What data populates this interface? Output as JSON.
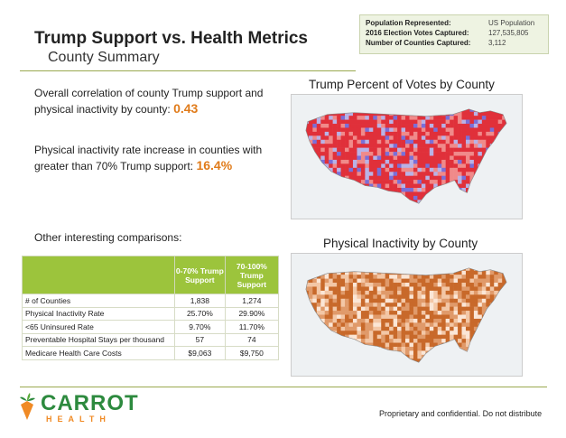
{
  "header": {
    "title": "Trump Support vs. Health Metrics",
    "subtitle": "County Summary"
  },
  "info": {
    "rows": [
      {
        "key": "Population Represented:",
        "value": "US Population"
      },
      {
        "key": "2016 Election Votes Captured:",
        "value": "127,535,805"
      },
      {
        "key": "Number of Counties Captured:",
        "value": "3,112"
      }
    ]
  },
  "stats": {
    "correlation_text": "Overall correlation of county Trump support and physical inactivity by county:",
    "correlation_value": "0.43",
    "inactivity_text": "Physical inactivity rate increase in counties with greater than 70% Trump support:",
    "inactivity_value": "16.4%",
    "other_label": "Other interesting comparisons:"
  },
  "maps": {
    "trump_title": "Trump Percent of Votes by County",
    "inactivity_title": "Physical Inactivity by County",
    "trump_colors": [
      "#e0303a",
      "#f08a8a",
      "#b9b2e6",
      "#7a6fd8"
    ],
    "inactivity_colors": [
      "#c8692a",
      "#e09a6a",
      "#f3c7a6",
      "#fbe6d6"
    ]
  },
  "table": {
    "headers": [
      "",
      "0-70% Trump Support",
      "70-100% Trump Support"
    ],
    "rows": [
      [
        "# of Counties",
        "1,838",
        "1,274"
      ],
      [
        "Physical Inactivity Rate",
        "25.70%",
        "29.90%"
      ],
      [
        "<65 Uninsured Rate",
        "9.70%",
        "11.70%"
      ],
      [
        "Preventable Hospital Stays per thousand",
        "57",
        "74"
      ],
      [
        "Medicare Health Care Costs",
        "$9,063",
        "$9,750"
      ]
    ]
  },
  "footer": {
    "logo_word": "CARROT",
    "logo_sub": "HEALTH",
    "note": "Proprietary and confidential. Do not distribute"
  }
}
